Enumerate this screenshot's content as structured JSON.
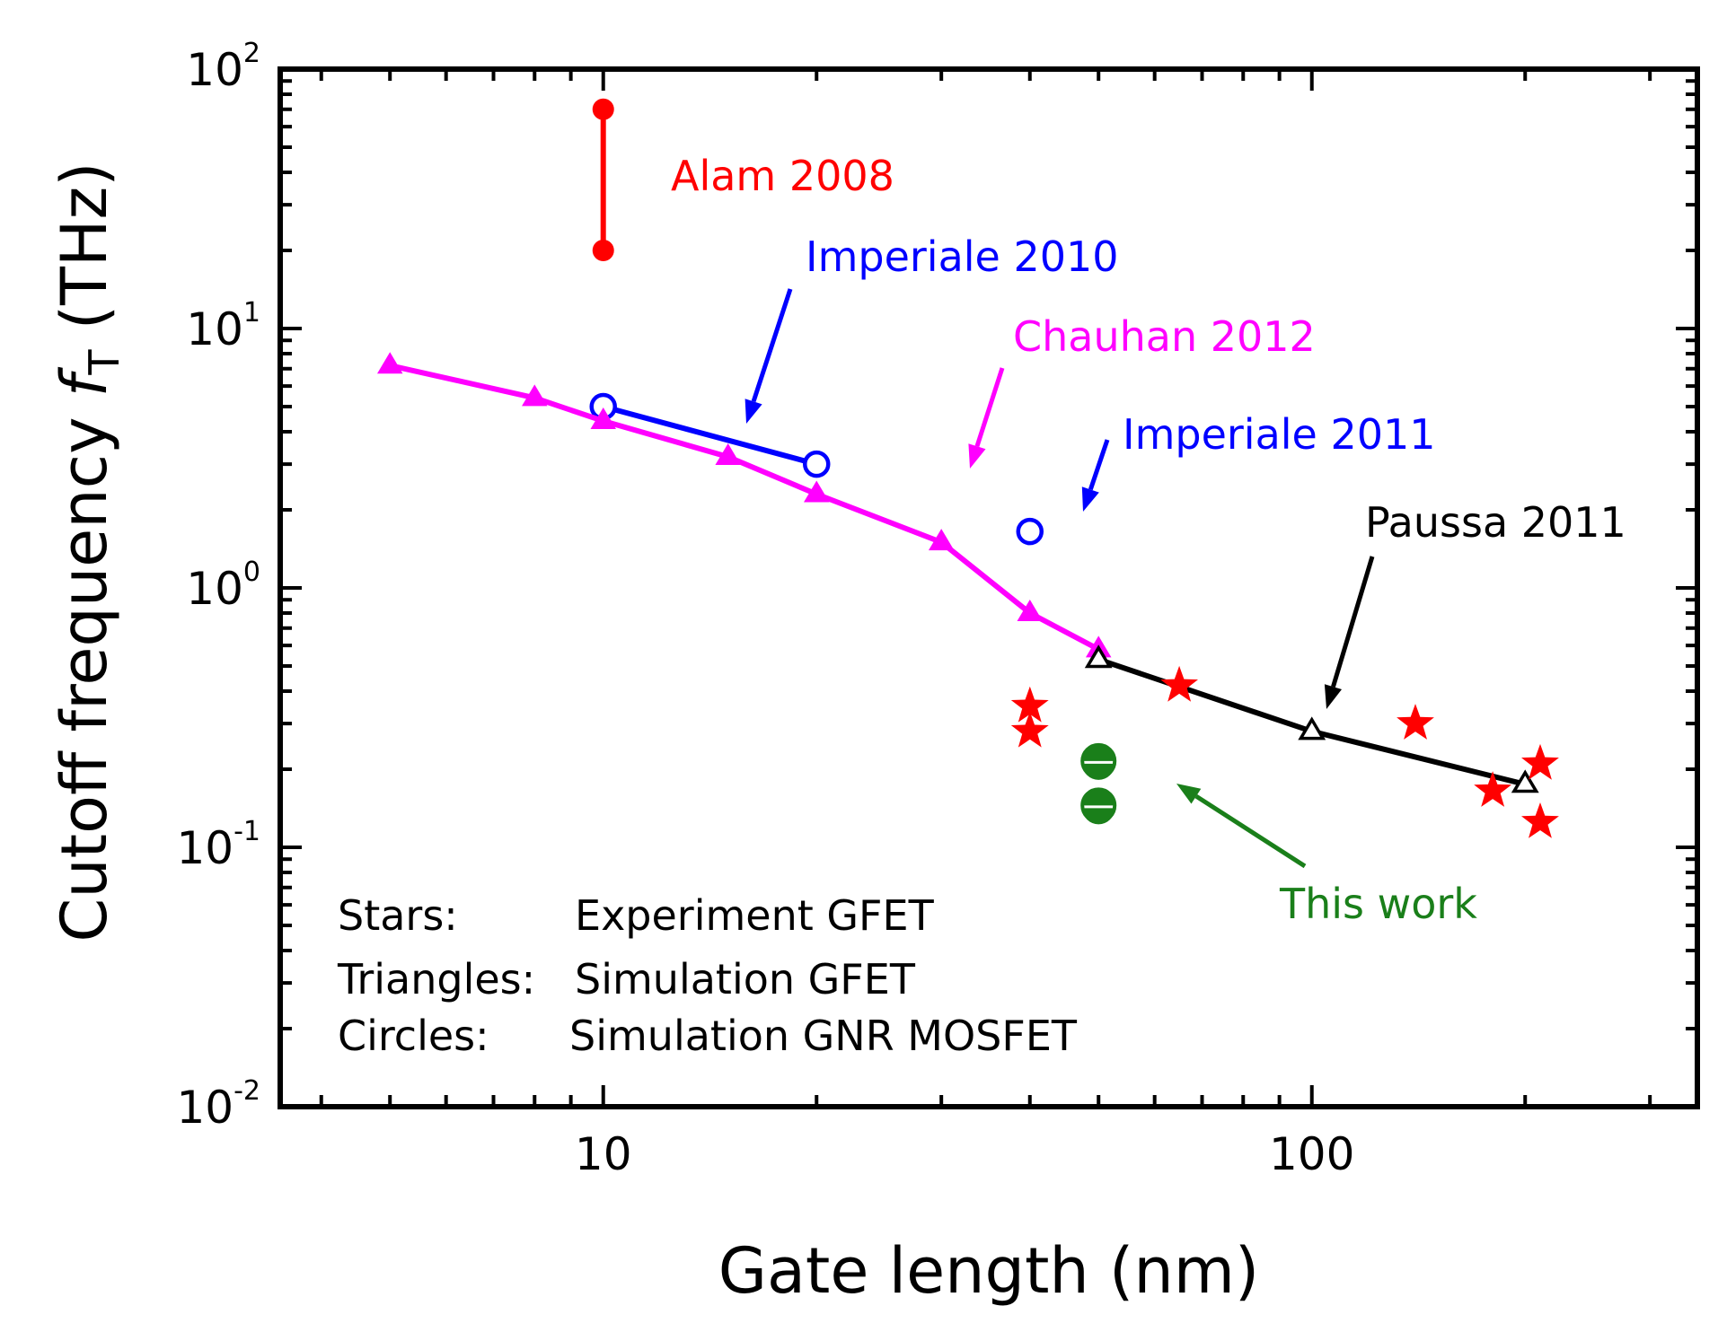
{
  "chart_data": {
    "type": "scatter",
    "x_scale": "log",
    "y_scale": "log",
    "xlabel": "Gate length (nm)",
    "ylabel_main": "Cutoff frequency ",
    "ylabel_symbol": "f",
    "ylabel_subscript": "T",
    "ylabel_unit": " (THz)",
    "xlim": [
      3.5,
      350
    ],
    "ylim": [
      0.01,
      100
    ],
    "x_ticks": [
      {
        "value": 10,
        "label": "10"
      },
      {
        "value": 100,
        "label": "100"
      }
    ],
    "y_ticks": [
      {
        "value": 100,
        "base": "10",
        "exp": "2"
      },
      {
        "value": 10,
        "base": "10",
        "exp": "1"
      },
      {
        "value": 1,
        "base": "10",
        "exp": "0"
      },
      {
        "value": 0.1,
        "base": "10",
        "exp": "-1"
      },
      {
        "value": 0.01,
        "base": "10",
        "exp": "-2"
      }
    ],
    "series": [
      {
        "name": "Alam 2008",
        "marker": "filled-circle",
        "color": "#ff0000",
        "line": true,
        "x": [
          10,
          10
        ],
        "y": [
          70,
          20
        ]
      },
      {
        "name": "Imperiale 2010",
        "marker": "open-circle",
        "color": "#0000ff",
        "line": true,
        "x": [
          10,
          20
        ],
        "y": [
          5,
          3
        ]
      },
      {
        "name": "Imperiale 2011",
        "marker": "open-circle",
        "color": "#0000ff",
        "line": false,
        "x": [
          40
        ],
        "y": [
          1.65
        ]
      },
      {
        "name": "Chauhan 2012",
        "marker": "filled-triangle",
        "color": "#ff00ff",
        "line": true,
        "x": [
          5,
          8,
          10,
          15,
          20,
          30,
          40,
          50
        ],
        "y": [
          7.2,
          5.4,
          4.4,
          3.2,
          2.3,
          1.5,
          0.8,
          0.58
        ]
      },
      {
        "name": "Paussa 2011",
        "marker": "open-triangle",
        "color": "#000000",
        "line": true,
        "x": [
          50,
          100,
          200
        ],
        "y": [
          0.53,
          0.28,
          0.175
        ]
      },
      {
        "name": "Experiment GFET",
        "marker": "star",
        "color": "#ff0000",
        "line": false,
        "x": [
          40,
          40,
          65,
          140,
          180,
          210,
          210
        ],
        "y": [
          0.35,
          0.28,
          0.42,
          0.3,
          0.165,
          0.21,
          0.125
        ]
      },
      {
        "name": "This work",
        "marker": "half-circle",
        "color": "#1a7f1a",
        "line": false,
        "x": [
          50,
          50
        ],
        "y": [
          0.215,
          0.145
        ]
      }
    ],
    "annotations": [
      {
        "text": "Alam 2008",
        "color": "#ff0000"
      },
      {
        "text": "Imperiale 2010",
        "color": "#0000ff"
      },
      {
        "text": "Chauhan 2012",
        "color": "#ff00ff"
      },
      {
        "text": "Imperiale 2011",
        "color": "#0000ff"
      },
      {
        "text": "Paussa 2011",
        "color": "#000000"
      },
      {
        "text": "This work",
        "color": "#1a7f1a"
      }
    ],
    "legend_notes": [
      {
        "key": "Stars:",
        "value": "Experiment GFET"
      },
      {
        "key": "Triangles:",
        "value": "Simulation GFET"
      },
      {
        "key": "Circles:",
        "value": "Simulation GNR MOSFET"
      }
    ]
  }
}
